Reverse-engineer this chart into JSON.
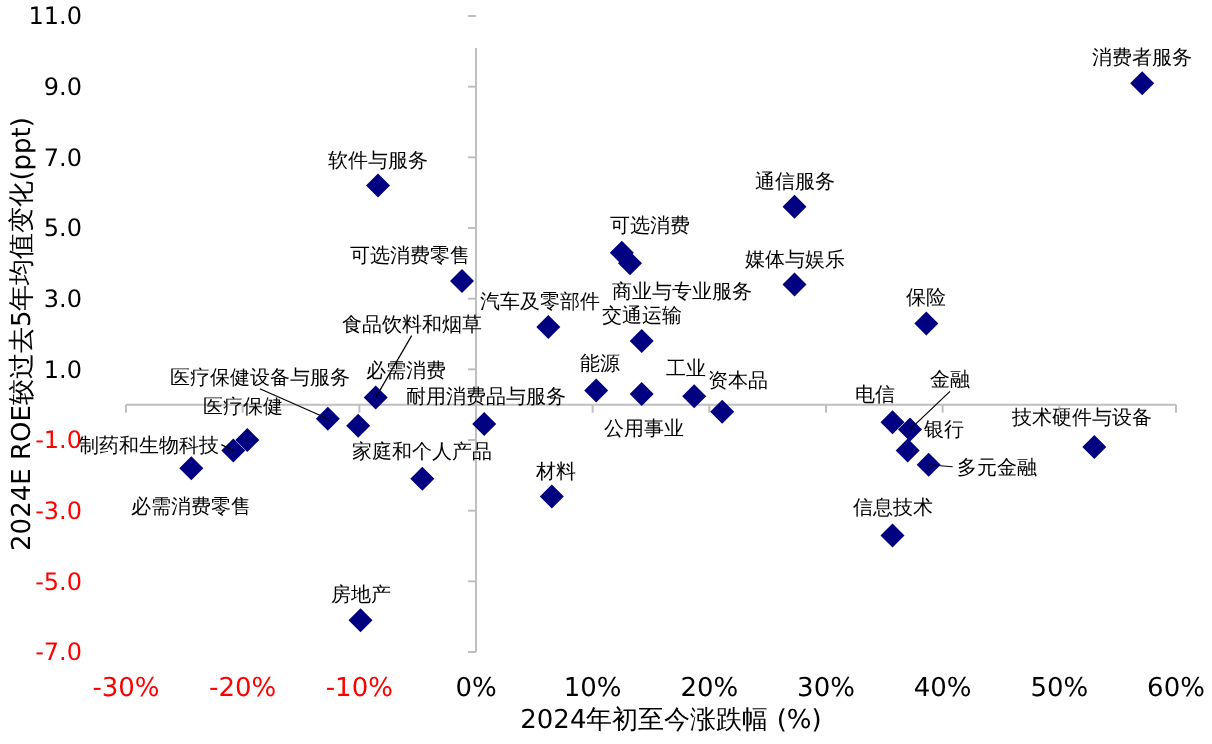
{
  "chart_data": {
    "type": "scatter",
    "xlabel": "2024年初至今涨跌幅 (%)",
    "ylabel": "2024E ROE较过去5年均值变化(ppt)",
    "xlim": [
      -30,
      60
    ],
    "ylim": [
      -7,
      11
    ],
    "xticks": [
      {
        "value": -30,
        "label": "-30%"
      },
      {
        "value": -20,
        "label": "-20%"
      },
      {
        "value": -10,
        "label": "-10%"
      },
      {
        "value": 0,
        "label": "0%"
      },
      {
        "value": 10,
        "label": "10%"
      },
      {
        "value": 20,
        "label": "20%"
      },
      {
        "value": 30,
        "label": "30%"
      },
      {
        "value": 40,
        "label": "40%"
      },
      {
        "value": 50,
        "label": "50%"
      },
      {
        "value": 60,
        "label": "60%"
      }
    ],
    "yticks": [
      {
        "value": -7,
        "label": "-7.0"
      },
      {
        "value": -5,
        "label": "-5.0"
      },
      {
        "value": -3,
        "label": "-3.0"
      },
      {
        "value": -1,
        "label": "-1.0"
      },
      {
        "value": 1,
        "label": "1.0"
      },
      {
        "value": 3,
        "label": "3.0"
      },
      {
        "value": 5,
        "label": "5.0"
      },
      {
        "value": 7,
        "label": "7.0"
      },
      {
        "value": 9,
        "label": "9.0"
      },
      {
        "value": 11,
        "label": "11.0"
      }
    ],
    "marker": "diamond",
    "series": [
      {
        "color": "#000080",
        "x": [
          57.1,
          -8.4,
          -1.2,
          27.3,
          12.5,
          13.2,
          27.3,
          38.6,
          6.2,
          14.2,
          -8.6,
          -10.1,
          -12.7,
          -19.6,
          -20.8,
          -24.4,
          0.7,
          -4.6,
          -9.9,
          6.5,
          10.3,
          14.2,
          18.7,
          21.1,
          35.7,
          37.2,
          37.0,
          38.8,
          53.0,
          35.7
        ],
        "values": [
          9.1,
          6.2,
          3.5,
          5.6,
          4.3,
          4.0,
          3.4,
          2.3,
          2.2,
          1.8,
          0.2,
          -0.6,
          -0.4,
          -1.0,
          -1.3,
          -1.8,
          -0.55,
          -2.1,
          -6.1,
          -2.6,
          0.4,
          0.3,
          0.24,
          -0.2,
          -0.5,
          -0.7,
          -1.3,
          -1.7,
          -1.2,
          -3.7
        ]
      }
    ],
    "annotations": [
      {
        "text": "消费者服务",
        "x": 57.1,
        "y": 9.1
      },
      {
        "text": "软件与服务",
        "x": -8.4,
        "y": 6.2
      },
      {
        "text": "可选消费零售",
        "x": -1.2,
        "y": 3.5
      },
      {
        "text": "通信服务",
        "x": 27.3,
        "y": 5.6
      },
      {
        "text": "可选消费",
        "x": 12.5,
        "y": 4.3
      },
      {
        "text": "商业与专业服务",
        "x": 13.2,
        "y": 4.0
      },
      {
        "text": "媒体与娱乐",
        "x": 27.3,
        "y": 3.4
      },
      {
        "text": "保险",
        "x": 38.6,
        "y": 2.3
      },
      {
        "text": "汽车及零部件",
        "x": 6.2,
        "y": 2.2
      },
      {
        "text": "交通运输",
        "x": 14.2,
        "y": 1.8
      },
      {
        "text": "食品饮料和烟草",
        "x": -8.6,
        "y": 0.2
      },
      {
        "text": "必需消费",
        "x": -10.1,
        "y": -0.6
      },
      {
        "text": "医疗保健设备与服务",
        "x": -12.7,
        "y": -0.4
      },
      {
        "text": "医疗保健",
        "x": -19.6,
        "y": -1.0
      },
      {
        "text": "制药和生物科技",
        "x": -20.8,
        "y": -1.3
      },
      {
        "text": "必需消费零售",
        "x": -24.4,
        "y": -1.8
      },
      {
        "text": "耐用消费品与服务",
        "x": 0.7,
        "y": -0.55
      },
      {
        "text": "家庭和个人产品",
        "x": -4.6,
        "y": -2.1
      },
      {
        "text": "房地产",
        "x": -9.9,
        "y": -6.1
      },
      {
        "text": "材料",
        "x": 6.5,
        "y": -2.6
      },
      {
        "text": "能源",
        "x": 10.3,
        "y": 0.4
      },
      {
        "text": "公用事业",
        "x": 14.2,
        "y": 0.3
      },
      {
        "text": "工业",
        "x": 18.7,
        "y": 0.24
      },
      {
        "text": "资本品",
        "x": 21.1,
        "y": -0.2
      },
      {
        "text": "电信",
        "x": 35.7,
        "y": -0.5
      },
      {
        "text": "金融",
        "x": 37.2,
        "y": -0.7
      },
      {
        "text": "银行",
        "x": 37.0,
        "y": -1.3
      },
      {
        "text": "多元金融",
        "x": 38.8,
        "y": -1.7
      },
      {
        "text": "技术硬件与设备",
        "x": 53.0,
        "y": -1.2
      },
      {
        "text": "信息技术",
        "x": 35.7,
        "y": -3.7
      }
    ]
  }
}
